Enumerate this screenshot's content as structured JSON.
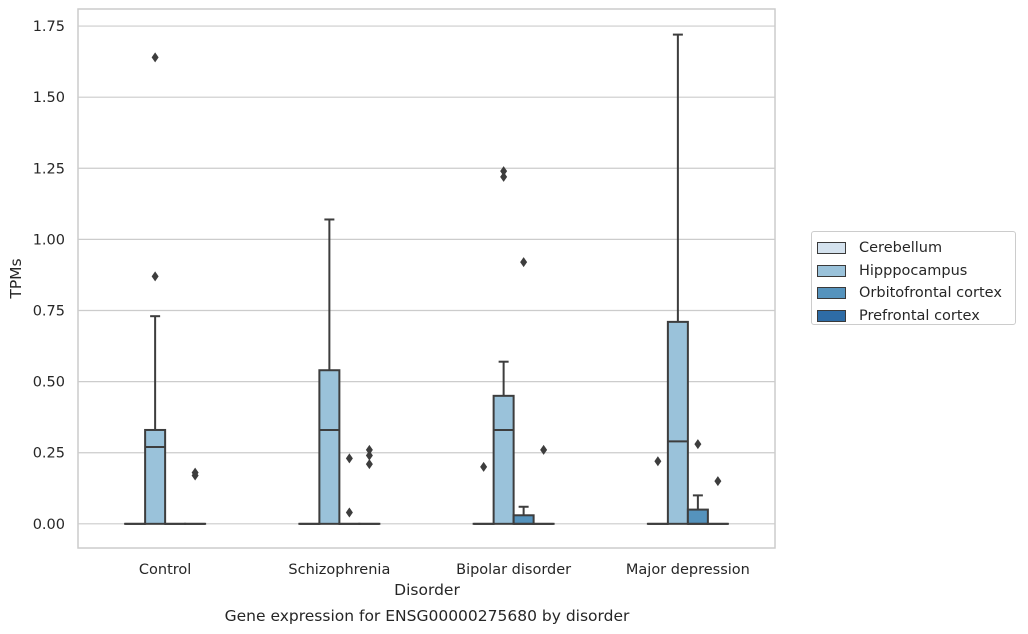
{
  "chart_data": {
    "type": "box",
    "xlabel": "Disorder",
    "ylabel": "TPMs",
    "caption": "Gene expression for ENSG00000275680 by disorder",
    "categories": [
      "Control",
      "Schizophrenia",
      "Bipolar disorder",
      "Major depression"
    ],
    "ylim": [
      -0.085,
      1.81
    ],
    "yticks": [
      "0.00",
      "0.25",
      "0.50",
      "0.75",
      "1.00",
      "1.25",
      "1.50",
      "1.75"
    ],
    "grid": true,
    "legend_position": "right",
    "series": [
      {
        "name": "Cerebellum",
        "color": "#d4e2ee",
        "boxes": [
          {
            "q1": 0,
            "median": 0,
            "q3": 0,
            "whisker_low": 0,
            "whisker_high": 0,
            "outliers": []
          },
          {
            "q1": 0,
            "median": 0,
            "q3": 0,
            "whisker_low": 0,
            "whisker_high": 0,
            "outliers": []
          },
          {
            "q1": 0,
            "median": 0,
            "q3": 0,
            "whisker_low": 0,
            "whisker_high": 0,
            "outliers": [
              0.2
            ]
          },
          {
            "q1": 0,
            "median": 0,
            "q3": 0,
            "whisker_low": 0,
            "whisker_high": 0,
            "outliers": [
              0.22
            ]
          }
        ]
      },
      {
        "name": "Hipppocampus",
        "color": "#9ac2da",
        "boxes": [
          {
            "q1": 0,
            "median": 0.27,
            "q3": 0.33,
            "whisker_low": 0,
            "whisker_high": 0.73,
            "outliers": [
              0.87,
              1.64
            ]
          },
          {
            "q1": 0,
            "median": 0.33,
            "q3": 0.54,
            "whisker_low": 0,
            "whisker_high": 1.07,
            "outliers": []
          },
          {
            "q1": 0,
            "median": 0.33,
            "q3": 0.45,
            "whisker_low": 0,
            "whisker_high": 0.57,
            "outliers": [
              1.22,
              1.24
            ]
          },
          {
            "q1": 0,
            "median": 0.29,
            "q3": 0.71,
            "whisker_low": 0,
            "whisker_high": 1.72,
            "outliers": []
          }
        ]
      },
      {
        "name": "Orbitofrontal cortex",
        "color": "#5593bd",
        "boxes": [
          {
            "q1": 0,
            "median": 0,
            "q3": 0,
            "whisker_low": 0,
            "whisker_high": 0,
            "outliers": []
          },
          {
            "q1": 0,
            "median": 0,
            "q3": 0,
            "whisker_low": 0,
            "whisker_high": 0,
            "outliers": [
              0.04,
              0.23
            ]
          },
          {
            "q1": 0,
            "median": 0,
            "q3": 0.03,
            "whisker_low": 0,
            "whisker_high": 0.06,
            "outliers": [
              0.92
            ]
          },
          {
            "q1": 0,
            "median": 0,
            "q3": 0.05,
            "whisker_low": 0,
            "whisker_high": 0.1,
            "outliers": [
              0.28
            ]
          }
        ]
      },
      {
        "name": "Prefrontal cortex",
        "color": "#2e6ca6",
        "boxes": [
          {
            "q1": 0,
            "median": 0,
            "q3": 0,
            "whisker_low": 0,
            "whisker_high": 0,
            "outliers": [
              0.17,
              0.18
            ]
          },
          {
            "q1": 0,
            "median": 0,
            "q3": 0,
            "whisker_low": 0,
            "whisker_high": 0,
            "outliers": [
              0.21,
              0.24,
              0.26
            ]
          },
          {
            "q1": 0,
            "median": 0,
            "q3": 0,
            "whisker_low": 0,
            "whisker_high": 0,
            "outliers": [
              0.26
            ]
          },
          {
            "q1": 0,
            "median": 0,
            "q3": 0,
            "whisker_low": 0,
            "whisker_high": 0,
            "outliers": [
              0.15
            ]
          }
        ]
      }
    ]
  }
}
